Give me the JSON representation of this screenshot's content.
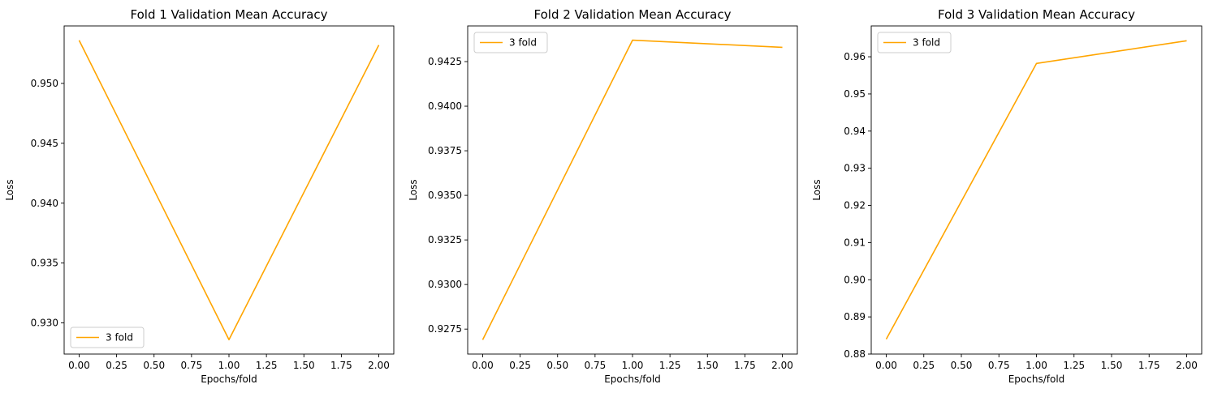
{
  "chart_data": [
    {
      "type": "line",
      "title": "Fold 1 Validation Mean Accuracy",
      "xlabel": "Epochs/fold",
      "ylabel": "Loss",
      "x": [
        0,
        1,
        2
      ],
      "series": [
        {
          "name": "3 fold",
          "values": [
            0.9536,
            0.9286,
            0.9532
          ],
          "color": "#ffa500"
        }
      ],
      "xlim": [
        -0.1,
        2.1
      ],
      "ylim": [
        0.9274,
        0.9548
      ],
      "xticks": [
        0.0,
        0.25,
        0.5,
        0.75,
        1.0,
        1.25,
        1.5,
        1.75,
        2.0
      ],
      "xtick_labels": [
        "0.00",
        "0.25",
        "0.50",
        "0.75",
        "1.00",
        "1.25",
        "1.50",
        "1.75",
        "2.00"
      ],
      "yticks": [
        0.93,
        0.935,
        0.94,
        0.945,
        0.95
      ],
      "ytick_labels": [
        "0.930",
        "0.935",
        "0.940",
        "0.945",
        "0.950"
      ],
      "grid": false,
      "legend": "lower-left"
    },
    {
      "type": "line",
      "title": "Fold 2 Validation Mean Accuracy",
      "xlabel": "Epochs/fold",
      "ylabel": "Loss",
      "x": [
        0,
        1,
        2
      ],
      "series": [
        {
          "name": "3 fold",
          "values": [
            0.9269,
            0.9437,
            0.9433
          ],
          "color": "#ffa500"
        }
      ],
      "xlim": [
        -0.1,
        2.1
      ],
      "ylim": [
        0.9261,
        0.9445
      ],
      "xticks": [
        0.0,
        0.25,
        0.5,
        0.75,
        1.0,
        1.25,
        1.5,
        1.75,
        2.0
      ],
      "xtick_labels": [
        "0.00",
        "0.25",
        "0.50",
        "0.75",
        "1.00",
        "1.25",
        "1.50",
        "1.75",
        "2.00"
      ],
      "yticks": [
        0.9275,
        0.93,
        0.9325,
        0.935,
        0.9375,
        0.94,
        0.9425
      ],
      "ytick_labels": [
        "0.9275",
        "0.9300",
        "0.9325",
        "0.9350",
        "0.9375",
        "0.9400",
        "0.9425"
      ],
      "grid": false,
      "legend": "upper-left"
    },
    {
      "type": "line",
      "title": "Fold 3 Validation Mean Accuracy",
      "xlabel": "Epochs/fold",
      "ylabel": "Loss",
      "x": [
        0,
        1,
        2
      ],
      "series": [
        {
          "name": "3 fold",
          "values": [
            0.884,
            0.9582,
            0.9643
          ],
          "color": "#ffa500"
        }
      ],
      "xlim": [
        -0.1,
        2.1
      ],
      "ylim": [
        0.88,
        0.9683
      ],
      "xticks": [
        0.0,
        0.25,
        0.5,
        0.75,
        1.0,
        1.25,
        1.5,
        1.75,
        2.0
      ],
      "xtick_labels": [
        "0.00",
        "0.25",
        "0.50",
        "0.75",
        "1.00",
        "1.25",
        "1.50",
        "1.75",
        "2.00"
      ],
      "yticks": [
        0.88,
        0.89,
        0.9,
        0.91,
        0.92,
        0.93,
        0.94,
        0.95,
        0.96
      ],
      "ytick_labels": [
        "0.88",
        "0.89",
        "0.90",
        "0.91",
        "0.92",
        "0.93",
        "0.94",
        "0.95",
        "0.96"
      ],
      "grid": false,
      "legend": "upper-left"
    }
  ]
}
